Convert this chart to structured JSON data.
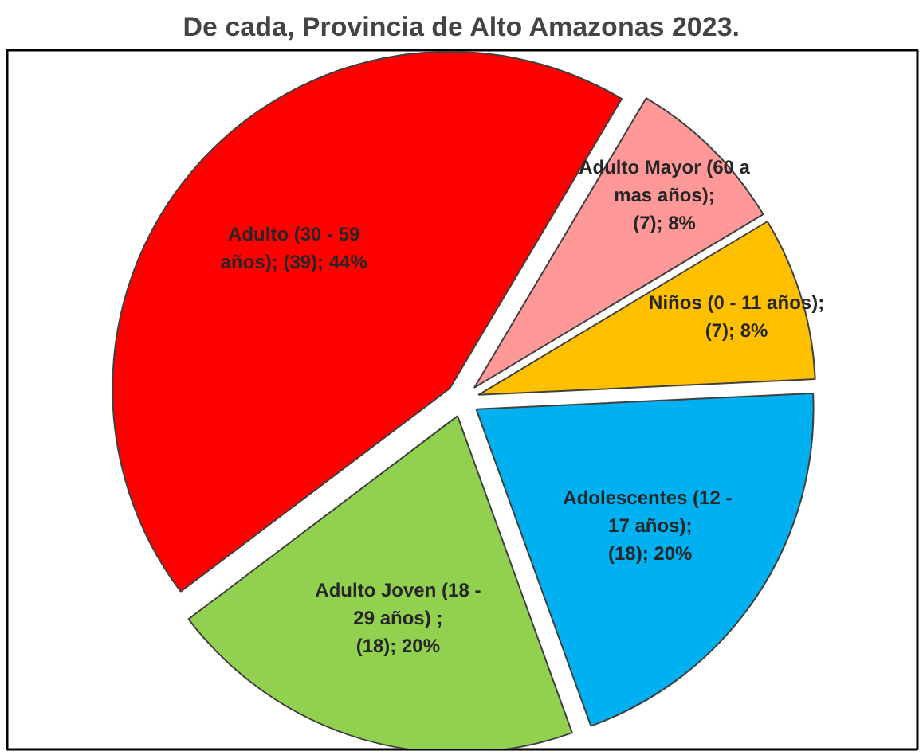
{
  "chart_data": {
    "type": "pie",
    "title": "De cada, Provincia de Alto Amazonas 2023.",
    "categories": [
      "Niños (0 - 11 años);\n(7); 8%",
      "Adolescentes  (12 -\n17 años);\n(18); 20%",
      "Adulto Joven (18 -\n29 años) ;\n(18); 20%",
      "Adulto (30 - 59\naños); (39); 44%",
      "Adulto Mayor (60 a\nmas años);\n(7); 8%"
    ],
    "values": [
      7,
      18,
      18,
      39,
      7
    ],
    "colors": [
      "#ffc000",
      "#00b0f0",
      "#92d050",
      "#ff0000",
      "#ff9999"
    ]
  }
}
